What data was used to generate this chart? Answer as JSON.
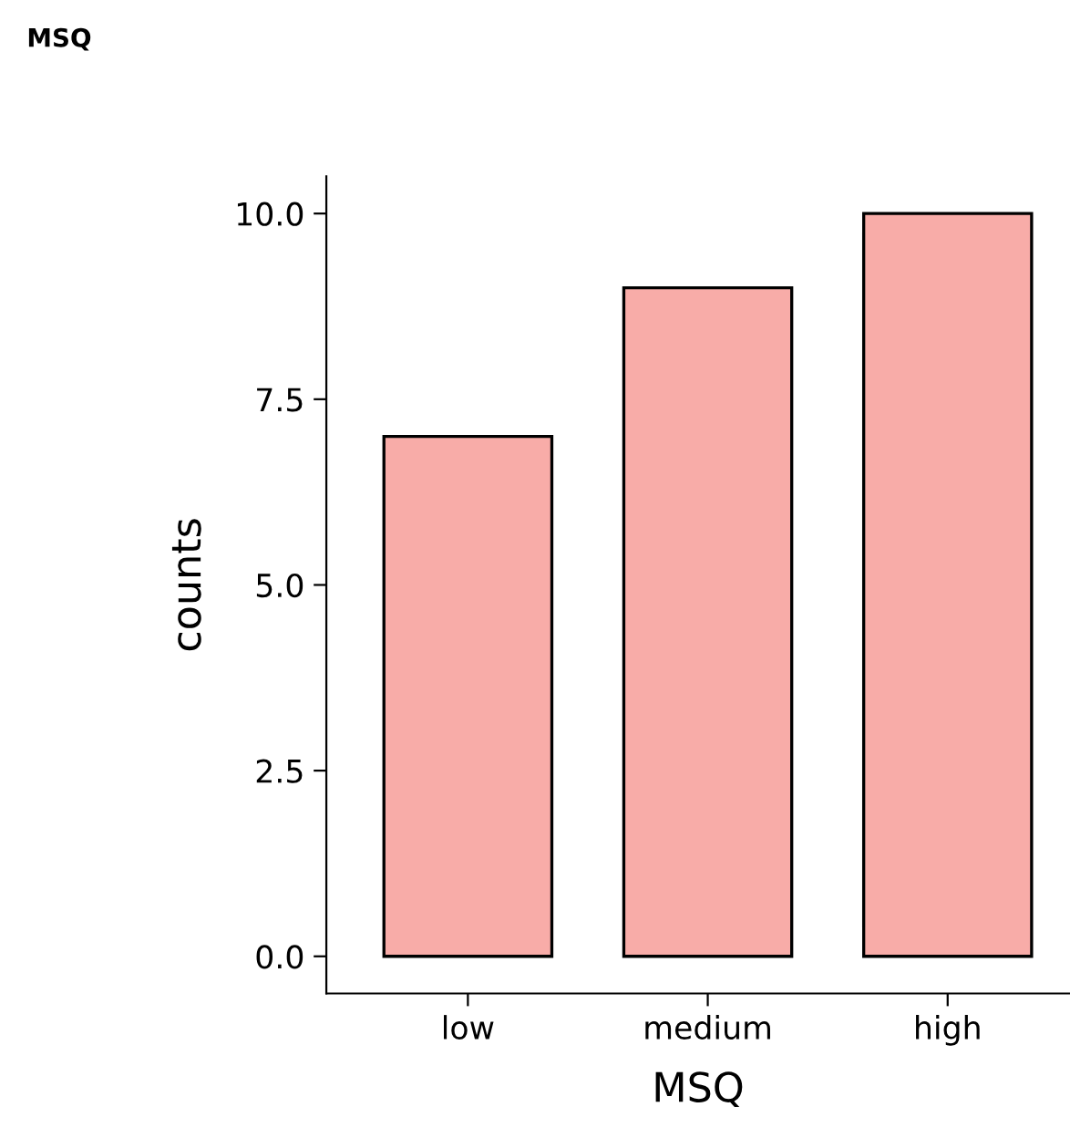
{
  "chart_data": {
    "type": "bar",
    "title": "MSQ",
    "xlabel": "MSQ",
    "ylabel": "counts",
    "categories": [
      "low",
      "medium",
      "high"
    ],
    "values": [
      7,
      9,
      10
    ],
    "color": "#f8aca8",
    "ylim": [
      -0.5,
      10.5
    ],
    "yticks": [
      {
        "value": 0,
        "label": "0.0"
      },
      {
        "value": 2.5,
        "label": "2.5"
      },
      {
        "value": 5,
        "label": "5.0"
      },
      {
        "value": 7.5,
        "label": "7.5"
      },
      {
        "value": 10,
        "label": "10.0"
      }
    ],
    "grid": false,
    "legend": false
  }
}
